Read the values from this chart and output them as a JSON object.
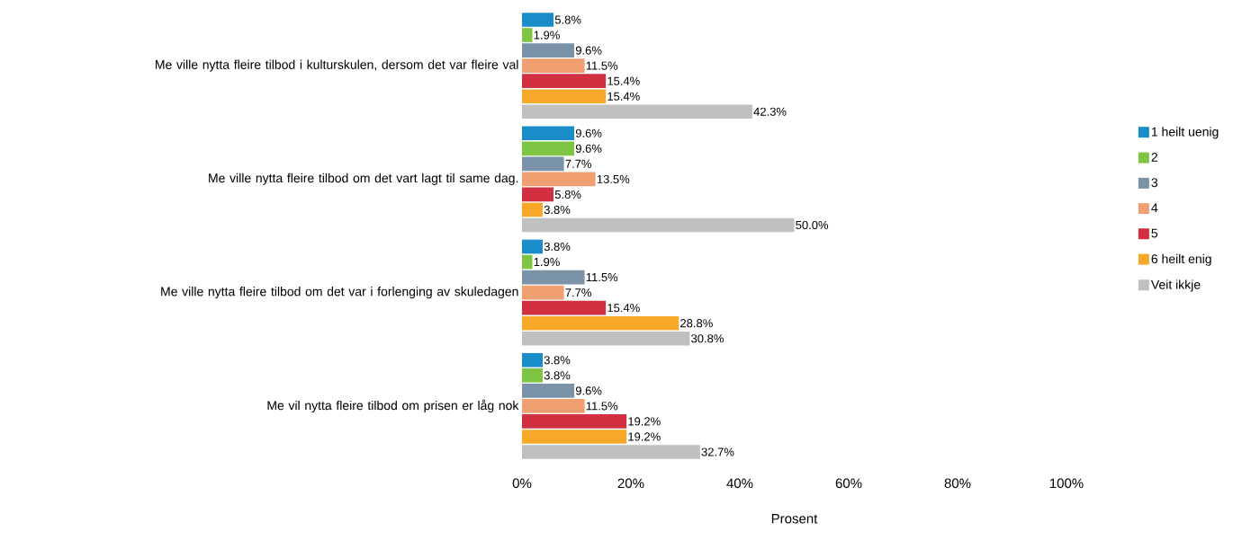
{
  "chart_data": {
    "type": "bar",
    "orientation": "horizontal",
    "xlabel": "Prosent",
    "categories": [
      "Me ville nytta fleire tilbod i kulturskulen, dersom det var fleire val",
      "Me ville nytta fleire tilbod om det vart lagt til same dag.",
      "Me ville nytta fleire tilbod om det var i forlenging av skuledagen",
      "Me vil nytta fleire tilbod om prisen er låg nok"
    ],
    "series": [
      {
        "name": "1 heilt uenig",
        "color": "#1a8dc8",
        "values": [
          5.8,
          9.6,
          3.8,
          3.8
        ],
        "value_labels": [
          "5.8%",
          "9.6%",
          "3.8%",
          "3.8%"
        ]
      },
      {
        "name": "2",
        "color": "#7dc542",
        "values": [
          1.9,
          9.6,
          1.9,
          3.8
        ],
        "value_labels": [
          "1.9%",
          "9.6%",
          "1.9%",
          "3.8%"
        ]
      },
      {
        "name": "3",
        "color": "#7b93a8",
        "values": [
          9.6,
          7.7,
          11.5,
          9.6
        ],
        "value_labels": [
          "9.6%",
          "7.7%",
          "11.5%",
          "9.6%"
        ]
      },
      {
        "name": "4",
        "color": "#f0a070",
        "values": [
          11.5,
          13.5,
          7.7,
          11.5
        ],
        "value_labels": [
          "11.5%",
          "13.5%",
          "7.7%",
          "11.5%"
        ]
      },
      {
        "name": "5",
        "color": "#d03040",
        "values": [
          15.4,
          5.8,
          15.4,
          19.2
        ],
        "value_labels": [
          "15.4%",
          "5.8%",
          "15.4%",
          "19.2%"
        ]
      },
      {
        "name": "6 heilt enig",
        "color": "#f8a828",
        "values": [
          15.4,
          3.8,
          28.8,
          19.2
        ],
        "value_labels": [
          "15.4%",
          "3.8%",
          "28.8%",
          "19.2%"
        ]
      },
      {
        "name": "Veit ikkje",
        "color": "#c0c0c0",
        "values": [
          42.3,
          50.0,
          30.8,
          32.7
        ],
        "value_labels": [
          "42.3%",
          "50.0%",
          "30.8%",
          "32.7%"
        ]
      }
    ],
    "xlim": [
      0,
      100
    ],
    "xticks": [
      {
        "value": 0,
        "label": "0%"
      },
      {
        "value": 20,
        "label": "20%"
      },
      {
        "value": 40,
        "label": "40%"
      },
      {
        "value": 60,
        "label": "60%"
      },
      {
        "value": 80,
        "label": "80%"
      },
      {
        "value": 100,
        "label": "100%"
      }
    ],
    "legend": "right",
    "grid": false
  }
}
